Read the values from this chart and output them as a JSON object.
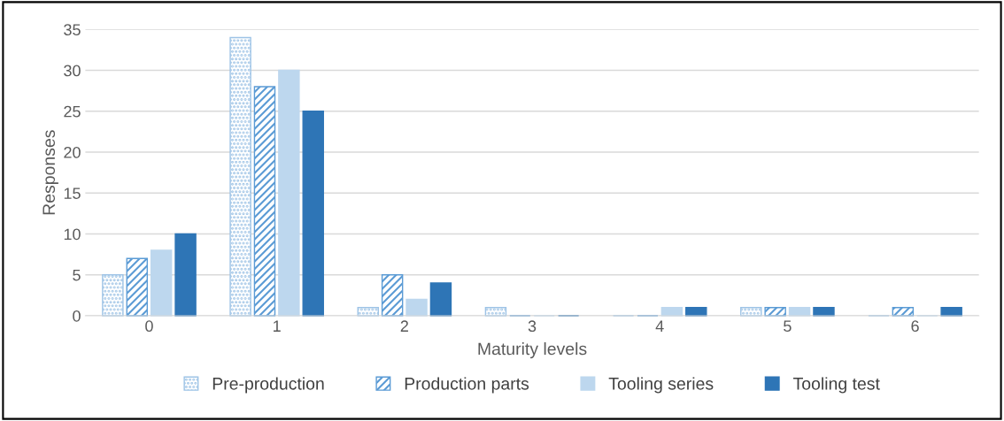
{
  "chart_data": {
    "type": "bar",
    "xlabel": "Maturity levels",
    "ylabel": "Responses",
    "categories": [
      "0",
      "1",
      "2",
      "3",
      "4",
      "5",
      "6"
    ],
    "series": [
      {
        "name": "Pre-production",
        "color": "#9dc3e6",
        "values": [
          5,
          34,
          1,
          1,
          0,
          1,
          0
        ]
      },
      {
        "name": "Production parts",
        "color": "#5b9bd5",
        "values": [
          7,
          28,
          5,
          0,
          0,
          1,
          1
        ]
      },
      {
        "name": "Tooling series",
        "color": "#bdd7ee",
        "values": [
          8,
          30,
          2,
          0,
          1,
          1,
          0
        ]
      },
      {
        "name": "Tooling test",
        "color": "#2e75b6",
        "values": [
          10,
          25,
          4,
          0,
          1,
          1,
          1
        ]
      }
    ],
    "ylim": [
      0,
      35
    ],
    "yticks": [
      0,
      5,
      10,
      15,
      20,
      25,
      30,
      35
    ],
    "grid": "y",
    "legend": "bottom"
  }
}
